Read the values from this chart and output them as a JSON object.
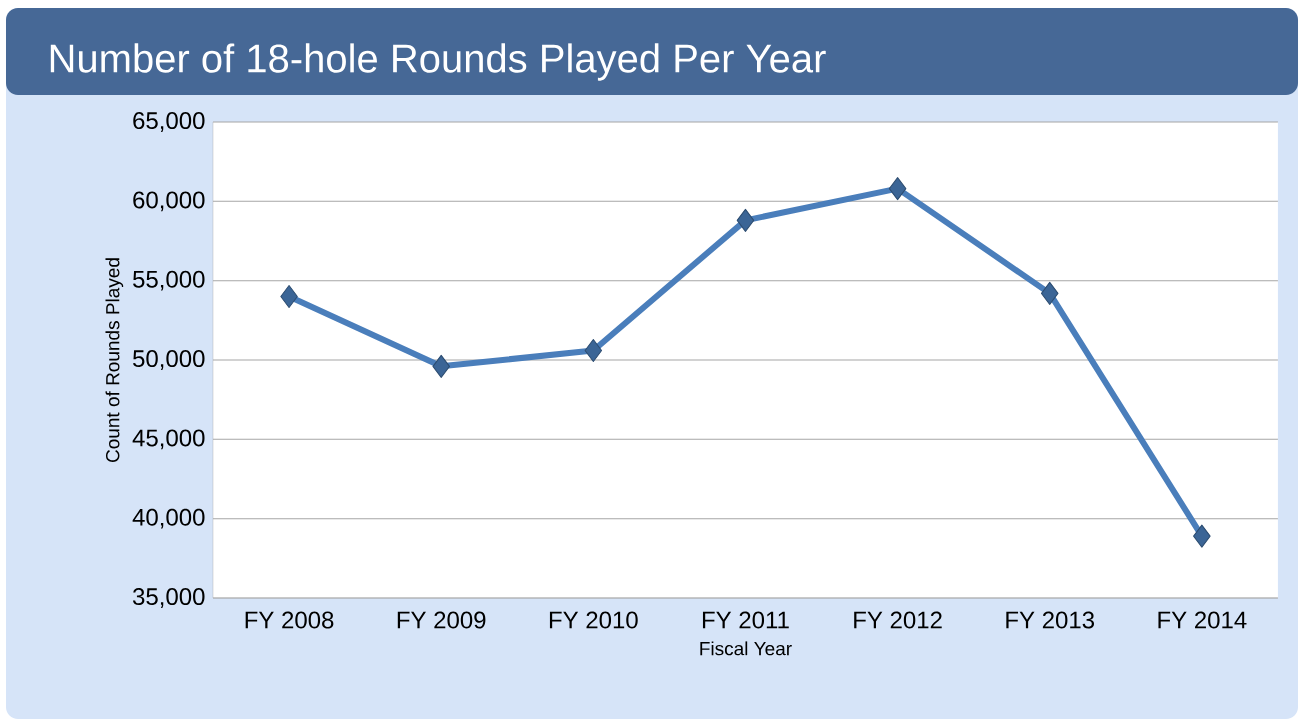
{
  "chart_data": {
    "type": "line",
    "title": "Number of 18-hole Rounds Played Per Year",
    "xlabel": "Fiscal Year",
    "ylabel": "Count of Rounds Played",
    "categories": [
      "FY 2008",
      "FY 2009",
      "FY 2010",
      "FY 2011",
      "FY 2012",
      "FY 2013",
      "FY 2014"
    ],
    "values": [
      54000,
      49600,
      50600,
      58800,
      60800,
      54200,
      38900
    ],
    "color": "#4a7ebb",
    "marker": "diamond",
    "line_style": "solid",
    "grid": "y",
    "ylim": [
      35000,
      65000
    ],
    "yticks": [
      {
        "value": 35000,
        "label": "35,000"
      },
      {
        "value": 40000,
        "label": "40,000"
      },
      {
        "value": 45000,
        "label": "45,000"
      },
      {
        "value": 50000,
        "label": "50,000"
      },
      {
        "value": 55000,
        "label": "55,000"
      },
      {
        "value": 60000,
        "label": "60,000"
      },
      {
        "value": 65000,
        "label": "65,000"
      }
    ]
  }
}
